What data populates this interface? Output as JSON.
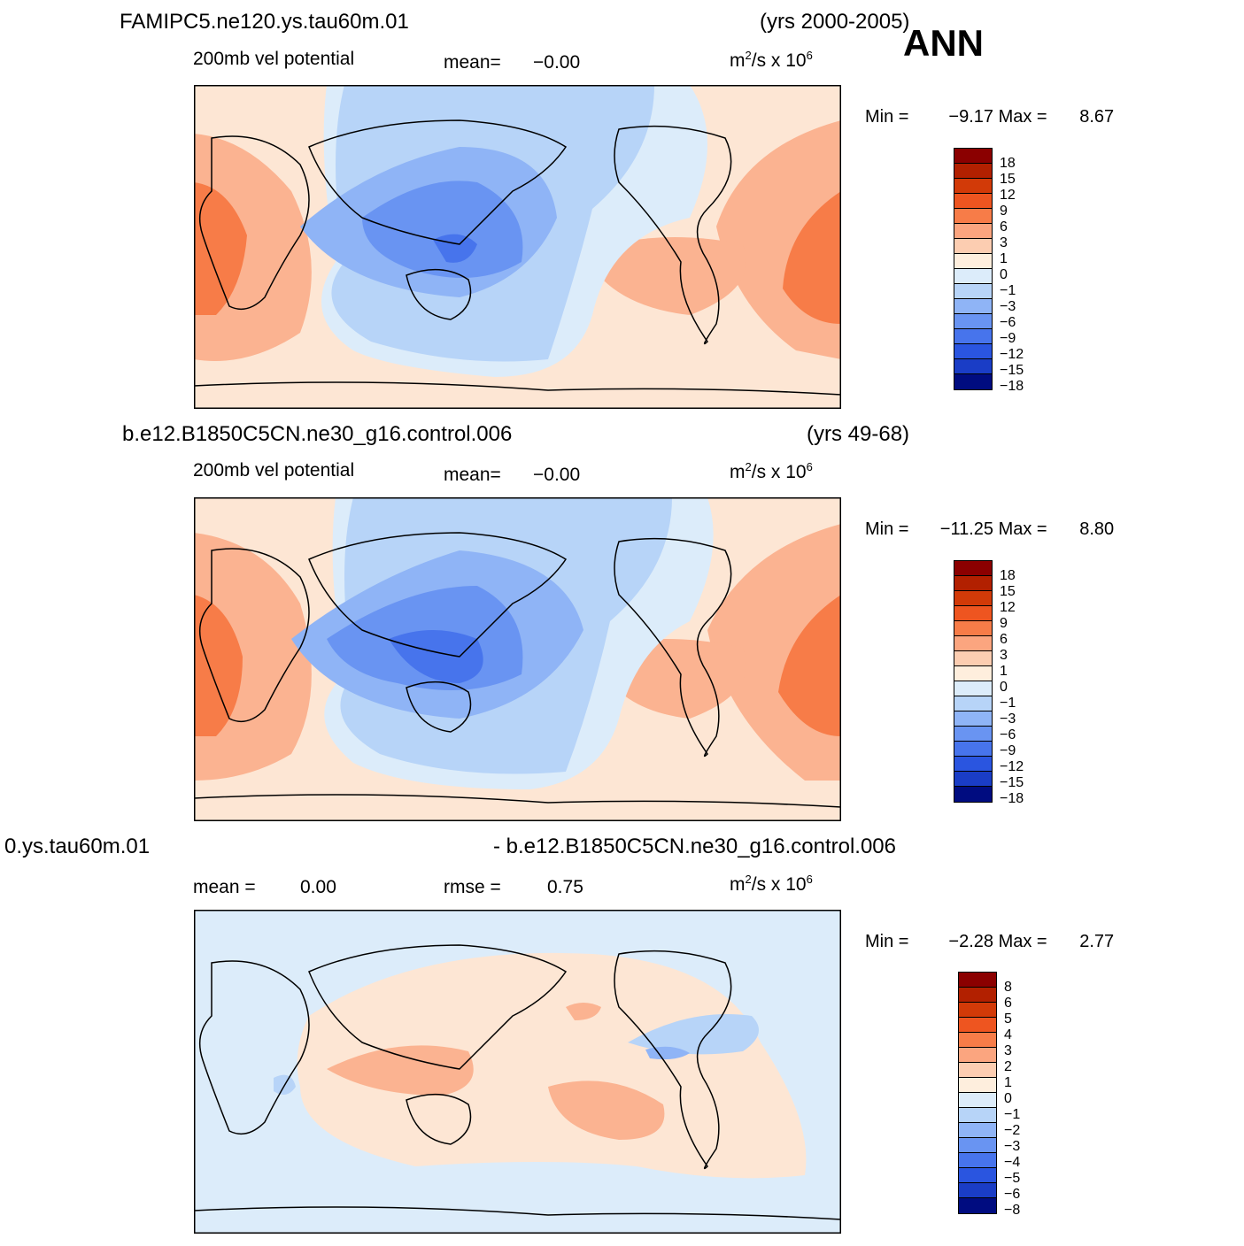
{
  "season": "ANN",
  "palette": {
    "full": [
      "#8b0000",
      "#b22000",
      "#d23a08",
      "#ee5520",
      "#f77c48",
      "#fba57f",
      "#fccdb1",
      "#feeedd",
      "#dcecfa",
      "#b7d4f8",
      "#8fb4f6",
      "#6994f2",
      "#4774ec",
      "#2a55e0",
      "#1a3dc6",
      "#0c2aa0",
      "#04157a"
    ],
    "bg_land": "#fde6d4"
  },
  "panels": [
    {
      "case_name": "FAMIPC5.ne120.ys.tau60m.01",
      "years": "(yrs 2000-2005)",
      "variable": "200mb vel potential",
      "stat_label": "mean=",
      "stat_value": "−0.00",
      "units_base": "m",
      "units_exp": "2",
      "units_mid": "/s x 10",
      "units_pow": "6",
      "min_label": "Min =",
      "min_value": "−9.17",
      "max_label": "Max =",
      "max_value": "8.67",
      "levels": [
        "18",
        "15",
        "12",
        "9",
        "6",
        "3",
        "1",
        "0",
        "−1",
        "−3",
        "−6",
        "−9",
        "−12",
        "−15",
        "−18"
      ]
    },
    {
      "case_name": "b.e12.B1850C5CN.ne30_g16.control.006",
      "years": "(yrs 49-68)",
      "variable": "200mb vel potential",
      "stat_label": "mean=",
      "stat_value": "−0.00",
      "units_base": "m",
      "units_exp": "2",
      "units_mid": "/s x 10",
      "units_pow": "6",
      "min_label": "Min =",
      "min_value": "−11.25",
      "max_label": "Max =",
      "max_value": "8.80",
      "levels": [
        "18",
        "15",
        "12",
        "9",
        "6",
        "3",
        "1",
        "0",
        "−1",
        "−3",
        "−6",
        "−9",
        "−12",
        "−15",
        "−18"
      ]
    },
    {
      "case_left": "0.ys.tau60m.01",
      "case_right": "- b.e12.B1850C5CN.ne30_g16.control.006",
      "mean_label": "mean =",
      "mean_value": "0.00",
      "rmse_label": "rmse =",
      "rmse_value": "0.75",
      "units_base": "m",
      "units_exp": "2",
      "units_mid": "/s x 10",
      "units_pow": "6",
      "min_label": "Min =",
      "min_value": "−2.28",
      "max_label": "Max =",
      "max_value": "2.77",
      "levels": [
        "8",
        "6",
        "5",
        "4",
        "3",
        "2",
        "1",
        "0",
        "−1",
        "−2",
        "−3",
        "−4",
        "−5",
        "−6",
        "−8"
      ]
    }
  ]
}
